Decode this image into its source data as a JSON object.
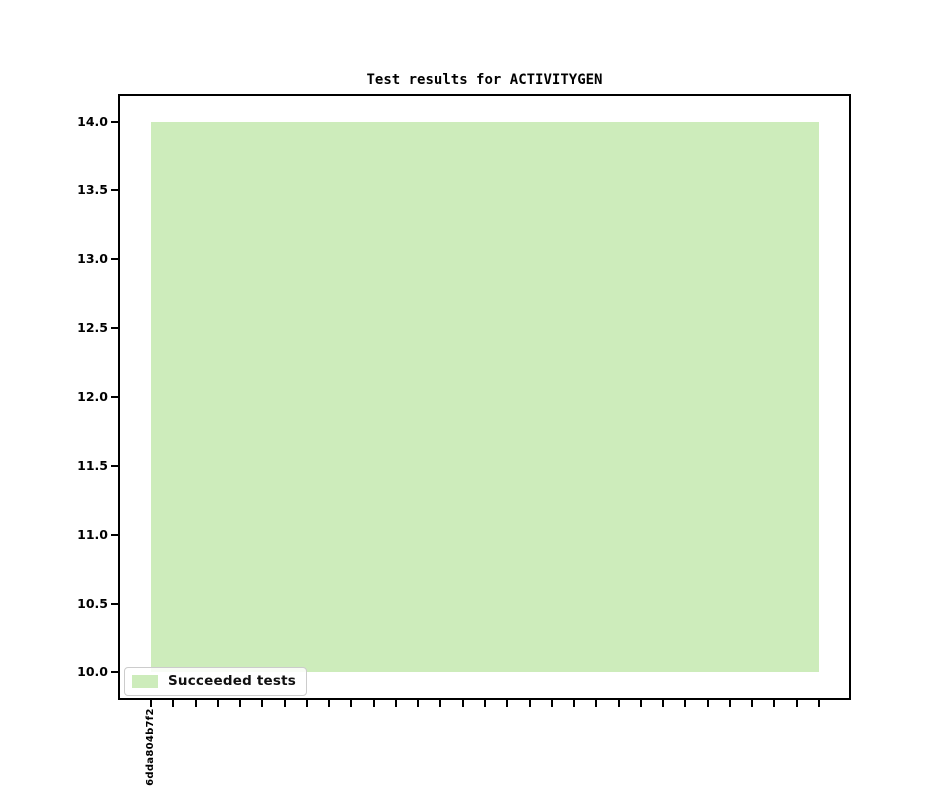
{
  "figure": {
    "background_color": "#ffffff",
    "axes_color": "#000000"
  },
  "chart_data": {
    "type": "area",
    "title": "Test results for ACTIVITYGEN",
    "xlabel": "",
    "ylabel": "",
    "grid": false,
    "ylim": [
      9.8,
      14.2
    ],
    "y_ticks": [
      "10.0",
      "10.5",
      "11.0",
      "11.5",
      "12.0",
      "12.5",
      "13.0",
      "13.5",
      "14.0"
    ],
    "x_points": 31,
    "x_tick_labels": [
      ".6dda804b7f2",
      "",
      "",
      "",
      "",
      "",
      "",
      "",
      "",
      "",
      "",
      "",
      "",
      "",
      "",
      "",
      "",
      "",
      "",
      "",
      "",
      "",
      "",
      "",
      "",
      "",
      "",
      "",
      "",
      "",
      ""
    ],
    "series": [
      {
        "name": "Succeeded tests",
        "color": "#cdecbb",
        "baseline": 10,
        "values": [
          14,
          14,
          14,
          14,
          14,
          14,
          14,
          14,
          14,
          14,
          14,
          14,
          14,
          14,
          14,
          14,
          14,
          14,
          14,
          14,
          14,
          14,
          14,
          14,
          14,
          14,
          14,
          14,
          14,
          14,
          14
        ]
      }
    ],
    "legend": {
      "position": "lower left",
      "entries": [
        "Succeeded tests"
      ]
    }
  }
}
